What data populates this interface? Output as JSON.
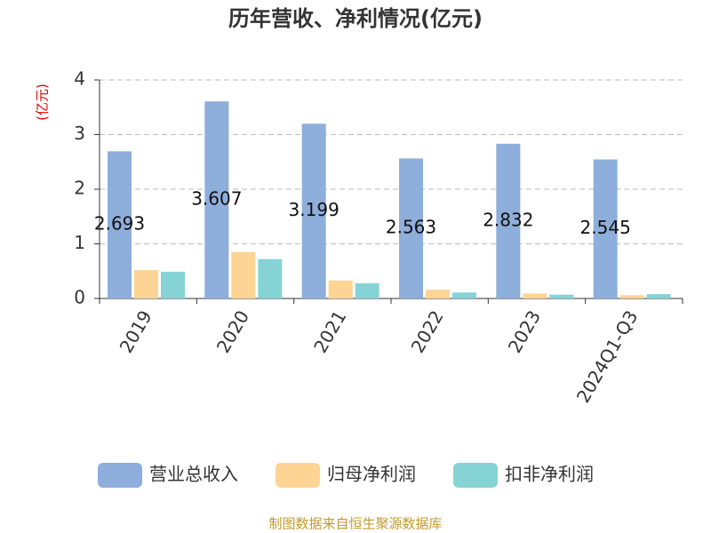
{
  "chart_data": {
    "type": "bar",
    "title": "历年营收、净利情况(亿元)",
    "y_axis_label": "(亿元)",
    "source": "制图数据来自恒生聚源数据库",
    "categories": [
      "2019",
      "2020",
      "2021",
      "2022",
      "2023",
      "2024Q1-Q3"
    ],
    "series": [
      {
        "name": "营业总收入",
        "color": "#8eaedb",
        "values": [
          2.693,
          3.607,
          3.199,
          2.563,
          2.832,
          2.545
        ],
        "show_labels": true
      },
      {
        "name": "归母净利润",
        "color": "#fdd493",
        "values": [
          0.52,
          0.85,
          0.33,
          0.16,
          0.09,
          0.06
        ]
      },
      {
        "name": "扣非净利润",
        "color": "#86d3d6",
        "values": [
          0.49,
          0.72,
          0.28,
          0.11,
          0.07,
          0.08
        ]
      }
    ],
    "ylim": [
      0,
      4
    ],
    "yticks": [
      0,
      1,
      2,
      3,
      4
    ],
    "grid": true,
    "legend": "bottom"
  }
}
